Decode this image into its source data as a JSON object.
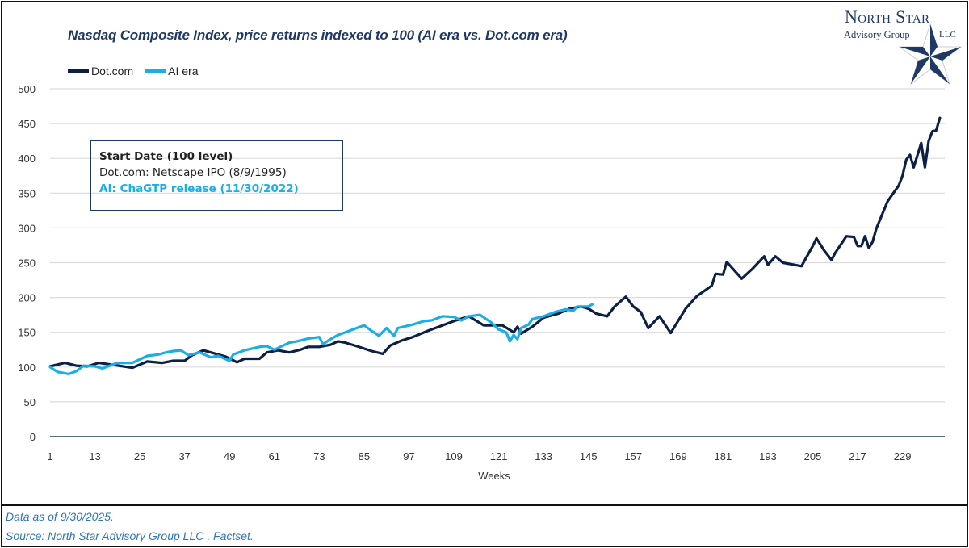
{
  "chart_data": {
    "type": "line",
    "title": "Nasdaq Composite Index, price returns indexed to 100 (AI era vs. Dot.com era)",
    "xlabel": "Weeks",
    "ylabel": "",
    "xlim": [
      1,
      239
    ],
    "ylim": [
      0,
      500
    ],
    "y_ticks": [
      0,
      50,
      100,
      150,
      200,
      250,
      300,
      350,
      400,
      450,
      500
    ],
    "x_ticks": [
      1,
      13,
      25,
      37,
      49,
      61,
      73,
      85,
      97,
      109,
      121,
      133,
      145,
      157,
      169,
      181,
      193,
      205,
      217,
      229
    ],
    "grid": true,
    "legend_position": "top-left",
    "series": [
      {
        "name": "Dot.com",
        "color": "#0e1f45",
        "points": [
          [
            1,
            101
          ],
          [
            5,
            106
          ],
          [
            8,
            102
          ],
          [
            11,
            101
          ],
          [
            14,
            106
          ],
          [
            18,
            103
          ],
          [
            23,
            99
          ],
          [
            27,
            108
          ],
          [
            31,
            106
          ],
          [
            34,
            109
          ],
          [
            37,
            109
          ],
          [
            39,
            117
          ],
          [
            42,
            124
          ],
          [
            44,
            121
          ],
          [
            48,
            115
          ],
          [
            51,
            107
          ],
          [
            53,
            112
          ],
          [
            57,
            112
          ],
          [
            59,
            121
          ],
          [
            62,
            124
          ],
          [
            65,
            121
          ],
          [
            68,
            125
          ],
          [
            70,
            129
          ],
          [
            73,
            129
          ],
          [
            76,
            132
          ],
          [
            78,
            137
          ],
          [
            80,
            135
          ],
          [
            83,
            130
          ],
          [
            87,
            123
          ],
          [
            90,
            119
          ],
          [
            92,
            131
          ],
          [
            95,
            138
          ],
          [
            98,
            143
          ],
          [
            102,
            152
          ],
          [
            106,
            160
          ],
          [
            109,
            166
          ],
          [
            113,
            173
          ],
          [
            117,
            160
          ],
          [
            122,
            160
          ],
          [
            125,
            150
          ],
          [
            126,
            158
          ],
          [
            127,
            148
          ],
          [
            130,
            158
          ],
          [
            133,
            171
          ],
          [
            137,
            177
          ],
          [
            140,
            184
          ],
          [
            143,
            187
          ],
          [
            145,
            184
          ],
          [
            147,
            177
          ],
          [
            150,
            173
          ],
          [
            152,
            187
          ],
          [
            155,
            201
          ],
          [
            157,
            187
          ],
          [
            159,
            179
          ],
          [
            161,
            156
          ],
          [
            164,
            173
          ],
          [
            167,
            149
          ],
          [
            171,
            184
          ],
          [
            174,
            202
          ],
          [
            178,
            217
          ],
          [
            179,
            234
          ],
          [
            181,
            233
          ],
          [
            182,
            251
          ],
          [
            186,
            227
          ],
          [
            189,
            242
          ],
          [
            192,
            259
          ],
          [
            193,
            247
          ],
          [
            195,
            259
          ],
          [
            197,
            250
          ],
          [
            200,
            247
          ],
          [
            202,
            245
          ],
          [
            203,
            255
          ],
          [
            205,
            274
          ],
          [
            206,
            285
          ],
          [
            208,
            268
          ],
          [
            210,
            254
          ],
          [
            211,
            264
          ],
          [
            214,
            288
          ],
          [
            216,
            287
          ],
          [
            217,
            274
          ],
          [
            218,
            274
          ],
          [
            219,
            288
          ],
          [
            220,
            271
          ],
          [
            221,
            280
          ],
          [
            222,
            299
          ],
          [
            225,
            338
          ],
          [
            228,
            361
          ],
          [
            229,
            375
          ],
          [
            230,
            398
          ],
          [
            231,
            405
          ],
          [
            232,
            387
          ],
          [
            234,
            422
          ],
          [
            235,
            387
          ],
          [
            236,
            425
          ],
          [
            237,
            439
          ],
          [
            238,
            440
          ],
          [
            239,
            458
          ]
        ]
      },
      {
        "name": "AI era",
        "color": "#1aaee8",
        "points": [
          [
            1,
            100
          ],
          [
            3,
            93
          ],
          [
            6,
            90
          ],
          [
            8,
            94
          ],
          [
            10,
            102
          ],
          [
            13,
            101
          ],
          [
            15,
            98
          ],
          [
            19,
            106
          ],
          [
            23,
            106
          ],
          [
            27,
            116
          ],
          [
            30,
            118
          ],
          [
            32,
            121
          ],
          [
            34,
            123
          ],
          [
            36,
            124
          ],
          [
            38,
            117
          ],
          [
            41,
            121
          ],
          [
            44,
            114
          ],
          [
            46,
            116
          ],
          [
            49,
            109
          ],
          [
            50,
            118
          ],
          [
            53,
            124
          ],
          [
            57,
            129
          ],
          [
            59,
            130
          ],
          [
            61,
            125
          ],
          [
            65,
            135
          ],
          [
            67,
            137
          ],
          [
            70,
            141
          ],
          [
            73,
            143
          ],
          [
            74,
            133
          ],
          [
            76,
            140
          ],
          [
            78,
            146
          ],
          [
            80,
            150
          ],
          [
            83,
            156
          ],
          [
            85,
            160
          ],
          [
            87,
            152
          ],
          [
            89,
            145
          ],
          [
            91,
            156
          ],
          [
            93,
            145
          ],
          [
            94,
            156
          ],
          [
            98,
            161
          ],
          [
            101,
            166
          ],
          [
            103,
            167
          ],
          [
            106,
            173
          ],
          [
            109,
            172
          ],
          [
            111,
            167
          ],
          [
            113,
            173
          ],
          [
            116,
            175
          ],
          [
            119,
            164
          ],
          [
            121,
            154
          ],
          [
            123,
            150
          ],
          [
            124,
            137
          ],
          [
            125,
            146
          ],
          [
            126,
            140
          ],
          [
            127,
            156
          ],
          [
            129,
            161
          ],
          [
            130,
            169
          ],
          [
            133,
            173
          ],
          [
            136,
            179
          ],
          [
            139,
            183
          ],
          [
            141,
            181
          ],
          [
            142,
            187
          ],
          [
            145,
            187
          ],
          [
            146,
            190
          ]
        ]
      }
    ]
  },
  "annotation": {
    "heading": "Start Date (100 level)",
    "line1": "Dot.com: Netscape IPO (8/9/1995)",
    "line2": "AI: ChaGTP release (11/30/2022)"
  },
  "footer": {
    "as_of": "Data as of 9/30/2025.",
    "source": "Source: North Star Advisory Group LLC , Factset."
  },
  "logo": {
    "line1": "North Star",
    "line2": "Advisory Group",
    "line3": "LLC"
  }
}
